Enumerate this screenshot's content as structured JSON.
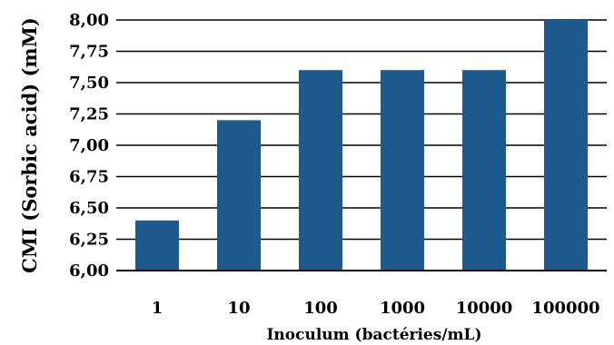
{
  "chart_data": {
    "type": "bar",
    "title": "",
    "xlabel": "Inoculum (bactéries/mL)",
    "ylabel": "CMI (Sorbic acid) (mM)",
    "categories": [
      "1",
      "10",
      "100",
      "1000",
      "10000",
      "100000"
    ],
    "values": [
      6.4,
      7.2,
      7.6,
      7.6,
      7.6,
      8.0
    ],
    "ylim": [
      6.0,
      8.0
    ],
    "yticks": [
      "6,00",
      "6,25",
      "6,50",
      "6,75",
      "7,00",
      "7,25",
      "7,50",
      "7,75",
      "8,00"
    ],
    "ytick_values": [
      6.0,
      6.25,
      6.5,
      6.75,
      7.0,
      7.25,
      7.5,
      7.75,
      8.0
    ],
    "grid": true,
    "legend": "none",
    "bar_color": "#1f5a8f"
  }
}
